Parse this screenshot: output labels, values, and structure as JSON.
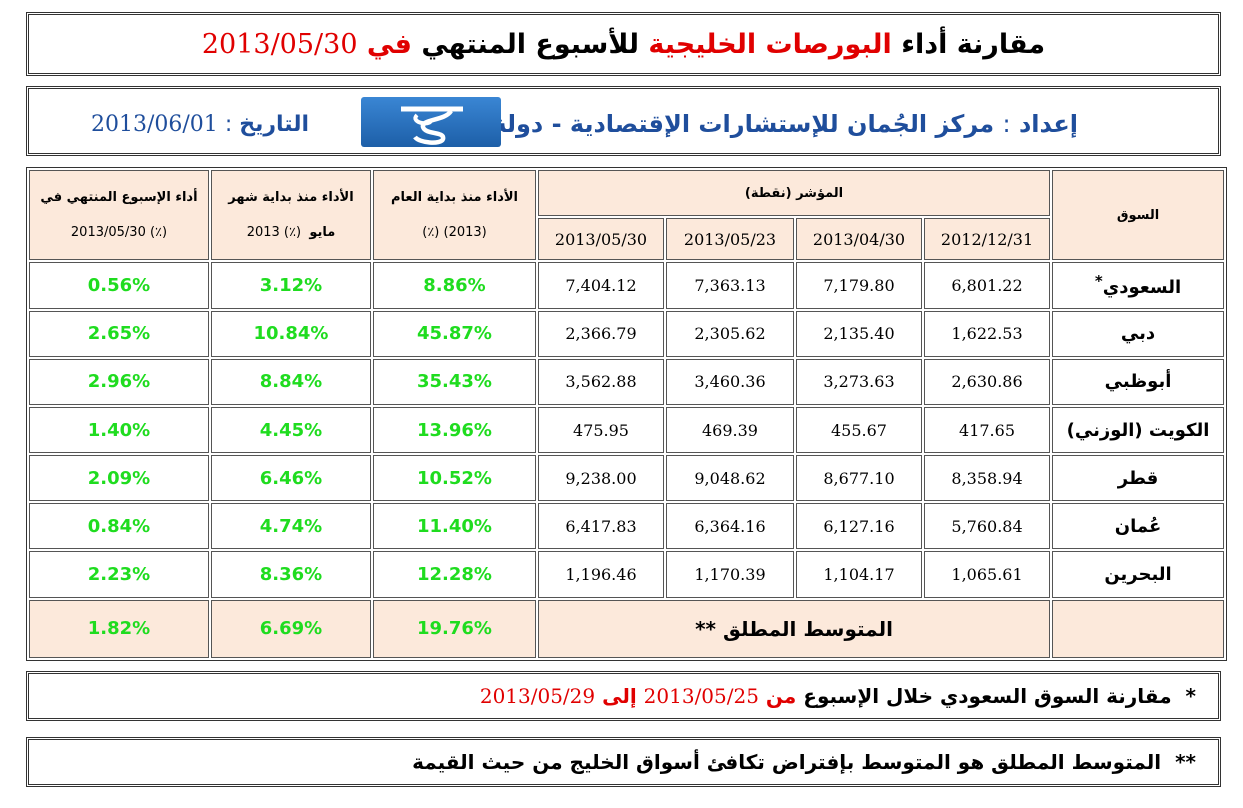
{
  "title": {
    "part1": "مقارنة أداء",
    "part2": "البورصات الخليجية",
    "part3": "للأسبوع المنتهي",
    "part4": "في",
    "date": "2013/05/30"
  },
  "info": {
    "prep_label": "إعداد",
    "prep_colon": ":",
    "prep_text": "مركز الجُمان للإستشارات الإقتصادية - دولة الكويت",
    "date_label": "التاريخ",
    "date_colon": ":",
    "date_value": "2013/06/01",
    "logo_icon": "jumann-logo-icon"
  },
  "table": {
    "col_market": "السوق",
    "col_index": "المؤشر (نقطة)",
    "col_index_dates": [
      "2012/12/31",
      "2013/04/30",
      "2013/05/23",
      "2013/05/30"
    ],
    "col_ytd": "الأداء منذ بداية العام",
    "col_ytd_sub": "(٪) (2013)",
    "col_mtd": "الأداء منذ بداية شهر",
    "col_mtd_sub_month": "مايو",
    "col_mtd_sub_rest": "2013 (٪)",
    "col_week": "أداء الإسبوع المنتهي في",
    "col_week_sub": "2013/05/30 (٪)",
    "rows": [
      {
        "market": "السعودي",
        "mark": "*",
        "v1": "6,801.22",
        "v2": "7,179.80",
        "v3": "7,363.13",
        "v4": "7,404.12",
        "ytd": "8.86%",
        "mtd": "3.12%",
        "week": "0.56%"
      },
      {
        "market": "دبي",
        "mark": "",
        "v1": "1,622.53",
        "v2": "2,135.40",
        "v3": "2,305.62",
        "v4": "2,366.79",
        "ytd": "45.87%",
        "mtd": "10.84%",
        "week": "2.65%"
      },
      {
        "market": "أبوظبي",
        "mark": "",
        "v1": "2,630.86",
        "v2": "3,273.63",
        "v3": "3,460.36",
        "v4": "3,562.88",
        "ytd": "35.43%",
        "mtd": "8.84%",
        "week": "2.96%"
      },
      {
        "market": "الكويت (الوزني)",
        "mark": "",
        "v1": "417.65",
        "v2": "455.67",
        "v3": "469.39",
        "v4": "475.95",
        "ytd": "13.96%",
        "mtd": "4.45%",
        "week": "1.40%"
      },
      {
        "market": "قطر",
        "mark": "",
        "v1": "8,358.94",
        "v2": "8,677.10",
        "v3": "9,048.62",
        "v4": "9,238.00",
        "ytd": "10.52%",
        "mtd": "6.46%",
        "week": "2.09%"
      },
      {
        "market": "عُمان",
        "mark": "",
        "v1": "5,760.84",
        "v2": "6,127.16",
        "v3": "6,364.16",
        "v4": "6,417.83",
        "ytd": "11.40%",
        "mtd": "4.74%",
        "week": "0.84%"
      },
      {
        "market": "البحرين",
        "mark": "",
        "v1": "1,065.61",
        "v2": "1,104.17",
        "v3": "1,170.39",
        "v4": "1,196.46",
        "ytd": "12.28%",
        "mtd": "8.36%",
        "week": "2.23%"
      }
    ],
    "avg_label": "المتوسط المطلق",
    "avg_mark": "**",
    "avg_ytd": "19.76%",
    "avg_mtd": "6.69%",
    "avg_week": "1.82%"
  },
  "notes": {
    "note1_mark": "*",
    "note1_text": "مقارنة السوق السعودي خلال الإسبوع",
    "note1_from": "من",
    "note1_date1": "2013/05/25",
    "note1_to": "إلى",
    "note1_date2": "2013/05/29",
    "note2_mark": "**",
    "note2_text": "المتوسط المطلق هو المتوسط بإفتراض تكافئ أسواق الخليج من حيث القيمة"
  },
  "colors": {
    "header_bg": "#fce9db",
    "green": "#1fdc1f",
    "red": "#e00000",
    "blue": "#1f4e9c"
  }
}
